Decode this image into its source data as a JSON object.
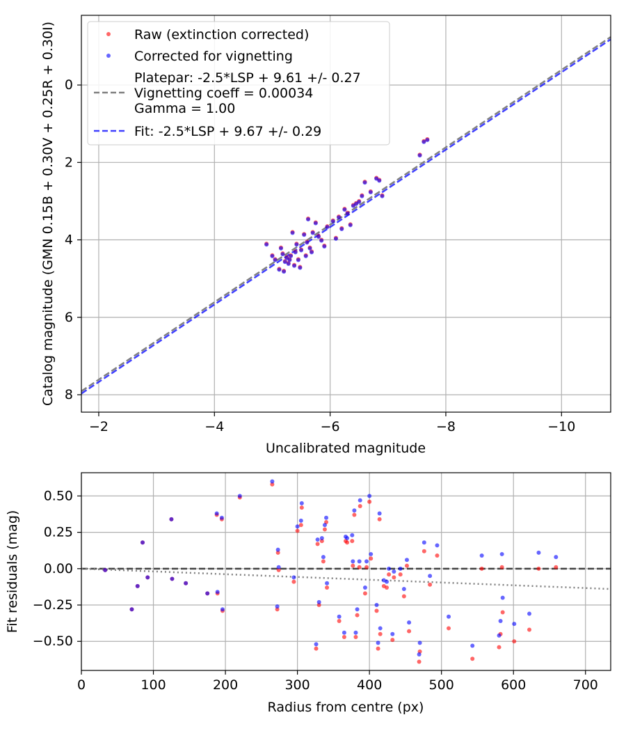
{
  "chart_data": [
    {
      "type": "scatter",
      "xlabel": "Uncalibrated magnitude",
      "ylabel": "Catalog magnitude (GMN 0.15B + 0.30V + 0.25R + 0.30I)",
      "xlim": [
        -1.7,
        -10.85
      ],
      "ylim": [
        8.45,
        -1.8
      ],
      "x_inverted": true,
      "y_inverted": true,
      "grid": true,
      "legend_position": "top-left",
      "xticks": [
        -2,
        -4,
        -6,
        -8,
        -10
      ],
      "xtick_labels": [
        "−2",
        "−4",
        "−6",
        "−8",
        "−10"
      ],
      "yticks": [
        0,
        2,
        4,
        6,
        8
      ],
      "ytick_labels": [
        "0",
        "2",
        "4",
        "6",
        "8"
      ],
      "legend": [
        "Raw (extinction corrected)",
        "Corrected for vignetting",
        "Platepar: -2.5*LSP + 9.61 +/- 0.27",
        "Vignetting coeff = 0.00034",
        "Gamma = 1.00",
        "Fit: -2.5*LSP + 9.67 +/- 0.29"
      ],
      "series": [
        {
          "name": "Raw (extinction corrected)",
          "color": "#ff0000",
          "x": [
            -4.9,
            -5.0,
            -5.05,
            -5.12,
            -5.18,
            -5.22,
            -5.25,
            -5.28,
            -5.3,
            -5.32,
            -5.35,
            -5.38,
            -5.4,
            -5.45,
            -5.5,
            -5.55,
            -5.6,
            -5.65,
            -5.7,
            -5.75,
            -5.8,
            -5.85,
            -5.9,
            -5.95,
            -6.05,
            -6.1,
            -6.15,
            -6.2,
            -6.25,
            -6.3,
            -6.35,
            -6.4,
            -6.45,
            -6.5,
            -6.55,
            -6.6,
            -6.7,
            -6.8,
            -6.85,
            -6.9,
            -7.55,
            -7.62,
            -7.68,
            -5.15,
            -5.2,
            -5.42,
            -5.58,
            -5.48,
            -5.62,
            -5.68
          ],
          "y": [
            4.1,
            4.4,
            4.5,
            4.75,
            4.35,
            4.55,
            4.45,
            4.6,
            4.5,
            4.4,
            3.8,
            4.65,
            4.3,
            4.5,
            4.25,
            3.85,
            4.05,
            4.2,
            3.8,
            3.55,
            3.9,
            4.0,
            4.15,
            3.65,
            3.5,
            3.95,
            3.4,
            3.7,
            3.2,
            3.3,
            3.6,
            3.1,
            3.05,
            3.0,
            2.85,
            2.5,
            2.75,
            2.4,
            2.45,
            2.85,
            1.8,
            1.45,
            1.4,
            4.2,
            4.8,
            4.1,
            4.4,
            4.7,
            3.45,
            4.3
          ]
        },
        {
          "name": "Corrected for vignetting",
          "color": "#0000ff",
          "x": [
            -4.9,
            -5.0,
            -5.05,
            -5.12,
            -5.18,
            -5.22,
            -5.25,
            -5.28,
            -5.3,
            -5.32,
            -5.35,
            -5.38,
            -5.4,
            -5.45,
            -5.5,
            -5.55,
            -5.6,
            -5.65,
            -5.7,
            -5.75,
            -5.8,
            -5.85,
            -5.9,
            -5.95,
            -6.05,
            -6.1,
            -6.15,
            -6.2,
            -6.25,
            -6.3,
            -6.35,
            -6.4,
            -6.45,
            -6.5,
            -6.55,
            -6.6,
            -6.7,
            -6.8,
            -6.85,
            -6.9,
            -7.55,
            -7.62,
            -7.68,
            -5.15,
            -5.2,
            -5.42,
            -5.58,
            -5.48,
            -5.62,
            -5.68
          ],
          "y": [
            4.12,
            4.42,
            4.52,
            4.77,
            4.37,
            4.57,
            4.47,
            4.62,
            4.52,
            4.42,
            3.82,
            4.67,
            4.32,
            4.52,
            4.27,
            3.87,
            4.07,
            4.22,
            3.82,
            3.57,
            3.92,
            4.02,
            4.17,
            3.67,
            3.52,
            3.97,
            3.42,
            3.72,
            3.22,
            3.32,
            3.62,
            3.12,
            3.07,
            3.02,
            2.87,
            2.52,
            2.77,
            2.42,
            2.47,
            2.87,
            1.82,
            1.47,
            1.42,
            4.22,
            4.82,
            4.12,
            4.42,
            4.72,
            3.47,
            4.32
          ]
        }
      ],
      "lines": [
        {
          "name": "Platepar",
          "color": "#808080",
          "style": "dashed",
          "intercept": 9.61,
          "slope": 1.0
        },
        {
          "name": "Fit",
          "color": "#0000ff",
          "style": "dashed",
          "intercept": 9.67,
          "slope": 1.0
        }
      ]
    },
    {
      "type": "scatter",
      "xlabel": "Radius from centre (px)",
      "ylabel": "Fit residuals (mag)",
      "xlim": [
        0,
        735
      ],
      "ylim": [
        -0.7,
        0.66
      ],
      "grid": true,
      "xticks": [
        0,
        100,
        200,
        300,
        400,
        500,
        600,
        700
      ],
      "xtick_labels": [
        "0",
        "100",
        "200",
        "300",
        "400",
        "500",
        "600",
        "700"
      ],
      "yticks": [
        0.5,
        0.25,
        0,
        -0.25,
        -0.5
      ],
      "ytick_labels": [
        "0.50",
        "0.25",
        "0.00",
        "−0.25",
        "−0.50"
      ],
      "series": [
        {
          "name": "Raw",
          "color": "#ff0000",
          "x": [
            33,
            70,
            78,
            85,
            92,
            125,
            126,
            145,
            175,
            188,
            189,
            195,
            196,
            220,
            265,
            272,
            273,
            274,
            295,
            300,
            305,
            306,
            326,
            328,
            330,
            334,
            336,
            338,
            340,
            341,
            358,
            365,
            367,
            369,
            376,
            377,
            379,
            381,
            383,
            386,
            387,
            394,
            396,
            400,
            402,
            410,
            412,
            414,
            415,
            420,
            424,
            427,
            432,
            434,
            443,
            448,
            452,
            455,
            469,
            470,
            476,
            484,
            494,
            510,
            543,
            556,
            580,
            582,
            584,
            585,
            601,
            622,
            635,
            659
          ],
          "y": [
            -0.01,
            -0.28,
            -0.12,
            0.18,
            -0.06,
            0.34,
            -0.07,
            -0.1,
            -0.17,
            0.37,
            -0.17,
            0.34,
            -0.29,
            0.49,
            0.58,
            -0.28,
            0.11,
            -0.01,
            -0.09,
            0.26,
            0.3,
            0.42,
            -0.55,
            0.17,
            -0.25,
            0.19,
            0.05,
            0.27,
            0.32,
            -0.13,
            -0.36,
            -0.47,
            0.19,
            0.18,
            0.19,
            0.02,
            0.37,
            -0.47,
            -0.32,
            0.01,
            0.43,
            -0.17,
            0.01,
            0.46,
            0.07,
            -0.29,
            -0.55,
            0.34,
            -0.45,
            -0.12,
            -0.13,
            -0.04,
            -0.49,
            -0.06,
            -0.04,
            -0.19,
            0.02,
            -0.43,
            -0.64,
            -0.57,
            0.12,
            -0.11,
            0.09,
            -0.41,
            -0.62,
            0.0,
            -0.54,
            -0.45,
            0.01,
            -0.3,
            -0.5,
            -0.42,
            0.0,
            0.01
          ]
        },
        {
          "name": "Corrected",
          "color": "#0000ff",
          "x": [
            33,
            70,
            78,
            85,
            92,
            125,
            126,
            145,
            175,
            188,
            189,
            195,
            196,
            220,
            265,
            272,
            273,
            274,
            295,
            300,
            305,
            306,
            326,
            328,
            330,
            334,
            336,
            338,
            340,
            341,
            358,
            365,
            367,
            369,
            376,
            377,
            379,
            381,
            383,
            386,
            387,
            394,
            396,
            400,
            402,
            410,
            412,
            414,
            415,
            420,
            424,
            427,
            432,
            434,
            443,
            448,
            452,
            455,
            469,
            470,
            476,
            484,
            494,
            510,
            543,
            556,
            580,
            582,
            584,
            585,
            601,
            622,
            635,
            659
          ],
          "y": [
            -0.01,
            -0.28,
            -0.12,
            0.18,
            -0.06,
            0.34,
            -0.07,
            -0.1,
            -0.17,
            0.38,
            -0.16,
            0.35,
            -0.28,
            0.5,
            0.6,
            -0.26,
            0.13,
            0.01,
            -0.06,
            0.29,
            0.33,
            0.45,
            -0.52,
            0.2,
            -0.23,
            0.21,
            0.08,
            0.3,
            0.35,
            -0.1,
            -0.33,
            -0.44,
            0.22,
            0.21,
            0.23,
            0.05,
            0.4,
            -0.44,
            -0.28,
            0.05,
            0.47,
            -0.13,
            0.05,
            0.5,
            0.1,
            -0.25,
            -0.51,
            0.38,
            -0.41,
            -0.08,
            -0.09,
            0.0,
            -0.45,
            -0.02,
            0.0,
            -0.14,
            0.06,
            -0.37,
            -0.59,
            -0.51,
            0.18,
            -0.05,
            0.16,
            -0.33,
            -0.53,
            0.09,
            -0.46,
            -0.36,
            0.1,
            -0.2,
            -0.38,
            -0.31,
            0.11,
            0.08
          ]
        }
      ],
      "lines": [
        {
          "name": "zero",
          "color": "#404040",
          "style": "dashed",
          "y": 0
        },
        {
          "name": "vignetting",
          "color": "#808080",
          "style": "dotted",
          "y0": 0.0,
          "y1": -0.14
        }
      ]
    }
  ]
}
